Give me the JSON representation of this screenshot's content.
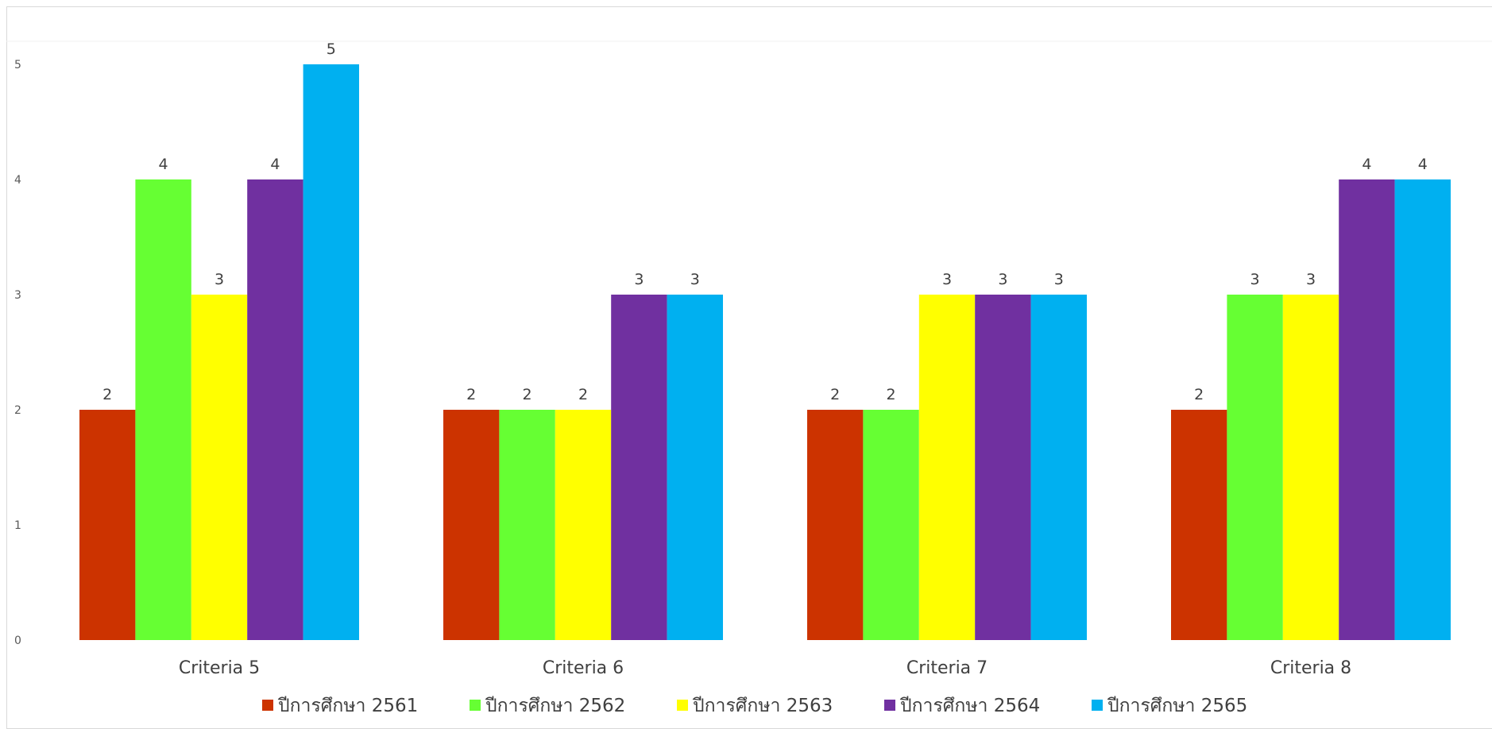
{
  "chart_data": {
    "type": "bar",
    "title": "",
    "xlabel": "",
    "ylabel": "",
    "categories": [
      "Criteria 5",
      "Criteria 6",
      "Criteria 7",
      "Criteria 8"
    ],
    "series": [
      {
        "name": "ปีการศึกษา 2561",
        "color": "#CC3300",
        "values": [
          2,
          2,
          2,
          2
        ]
      },
      {
        "name": "ปีการศึกษา 2562",
        "color": "#66FF33",
        "values": [
          4,
          2,
          2,
          3
        ]
      },
      {
        "name": "ปีการศึกษา 2563",
        "color": "#FFFF00",
        "values": [
          3,
          2,
          3,
          3
        ]
      },
      {
        "name": "ปีการศึกษา 2564",
        "color": "#7030A0",
        "values": [
          4,
          3,
          3,
          4
        ]
      },
      {
        "name": "ปีการศึกษา 2565",
        "color": "#00B0F0",
        "values": [
          5,
          3,
          3,
          4
        ]
      }
    ],
    "y_ticks": [
      0,
      1,
      2,
      3,
      4,
      5
    ],
    "ylim": [
      0,
      5
    ],
    "data_labels": true,
    "grid": false,
    "legend_position": "bottom"
  }
}
